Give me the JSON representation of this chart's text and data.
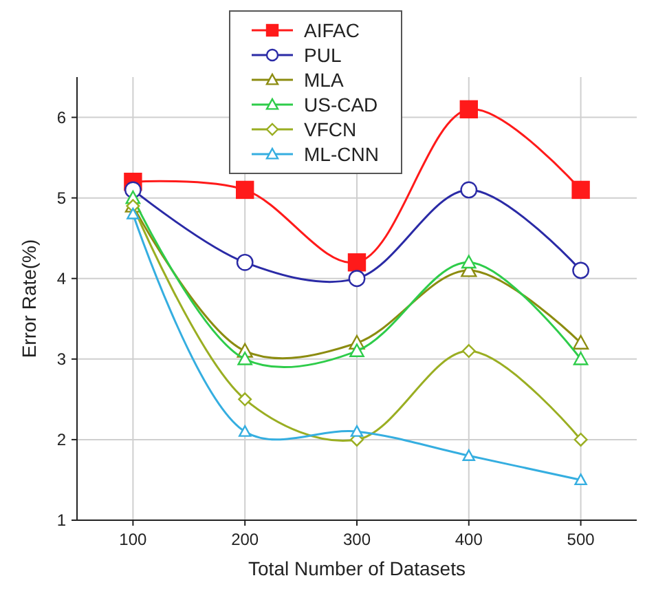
{
  "chart_data": {
    "type": "line",
    "xlabel": "Total Number of Datasets",
    "ylabel": "Error Rate(%)",
    "x": [
      100,
      200,
      300,
      400,
      500
    ],
    "xlim": [
      50,
      550
    ],
    "xticks": [
      100,
      200,
      300,
      400,
      500
    ],
    "ylim": [
      1,
      6.5
    ],
    "yticks": [
      1,
      2,
      3,
      4,
      5,
      6
    ],
    "grid": true,
    "legend": "top",
    "line_style": "solid",
    "series": [
      {
        "name": "AIFAC",
        "color": "#ff1a1a",
        "marker": "square",
        "values": [
          5.2,
          5.1,
          4.2,
          6.1,
          5.1
        ]
      },
      {
        "name": "PUL",
        "color": "#2a2aa6",
        "marker": "circle",
        "values": [
          5.1,
          4.2,
          4.0,
          5.1,
          4.1
        ]
      },
      {
        "name": "MLA",
        "color": "#8c8c10",
        "marker": "triangle",
        "values": [
          4.9,
          3.1,
          3.2,
          4.1,
          3.2
        ]
      },
      {
        "name": "US-CAD",
        "color": "#2ecc4a",
        "marker": "triangle",
        "values": [
          5.0,
          3.0,
          3.1,
          4.2,
          3.0
        ]
      },
      {
        "name": "VFCN",
        "color": "#9aae22",
        "marker": "diamond",
        "values": [
          4.9,
          2.5,
          2.0,
          3.1,
          2.0
        ]
      },
      {
        "name": "ML-CNN",
        "color": "#35aee0",
        "marker": "triangle",
        "values": [
          4.8,
          2.1,
          2.1,
          1.8,
          1.5
        ]
      }
    ]
  }
}
